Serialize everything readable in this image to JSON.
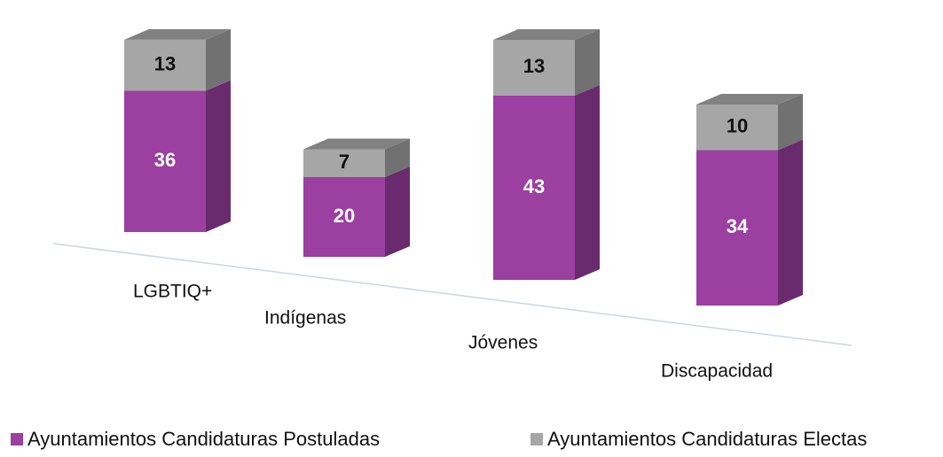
{
  "chart_data": {
    "type": "bar3d_stacked",
    "categories": [
      "LGBTIQ+",
      "Indígenas",
      "Jóvenes",
      "Discapacidad"
    ],
    "series": [
      {
        "name": "Ayuntamientos Candidaturas Postuladas",
        "color": "#9b3fa0",
        "values": [
          36,
          20,
          43,
          34
        ]
      },
      {
        "name": "Ayuntamientos Candidaturas Electas",
        "color": "#a6a6a6",
        "values": [
          13,
          7,
          13,
          10
        ]
      }
    ]
  }
}
